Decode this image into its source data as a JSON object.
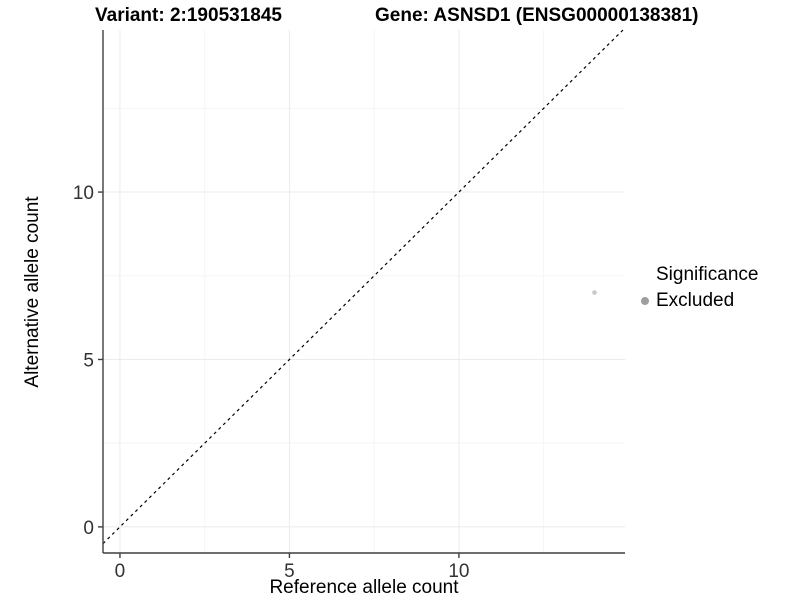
{
  "chart_data": {
    "type": "scatter",
    "title_left": "Variant: 2:190531845",
    "title_right": "Gene: ASNSD1 (ENSG00000138381)",
    "xlabel": "Reference allele count",
    "ylabel": "Alternative allele count",
    "xlim": [
      -0.5,
      14.9
    ],
    "ylim": [
      -0.78,
      14.84
    ],
    "x_major_ticks": [
      0,
      5,
      10
    ],
    "y_major_ticks": [
      0,
      5,
      10
    ],
    "x_minor_gridlines": [
      2.5,
      7.5,
      12.5
    ],
    "y_minor_gridlines": [
      2.5,
      7.5,
      12.5
    ],
    "grid": true,
    "identity_line": {
      "equation": "y = x",
      "style": "dashed",
      "color": "#000000"
    },
    "series": [
      {
        "name": "Excluded",
        "color": "#c9c9c9",
        "point_radius": 2.3,
        "points": [
          {
            "x": 14,
            "y": 7
          }
        ]
      }
    ],
    "legend": {
      "title": "Significance",
      "position": "right",
      "items": [
        {
          "label": "Excluded",
          "color": "#9e9e9e"
        }
      ]
    },
    "colors": {
      "axis_line": "#3f3f3f",
      "tick_mark": "#3f3f3f",
      "tick_label": "#333333",
      "grid_major": "#ebebeb",
      "grid_minor": "#f5f5f5",
      "background": "#ffffff"
    }
  }
}
